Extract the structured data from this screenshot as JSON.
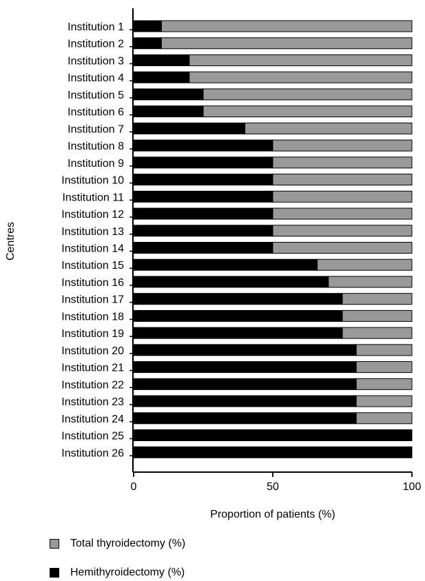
{
  "chart_data": {
    "type": "bar",
    "orientation": "horizontal",
    "stacked": true,
    "categories": [
      "Institution 1",
      "Institution 2",
      "Institution 3",
      "Institution 4",
      "Institution 5",
      "Institution 6",
      "Institution 7",
      "Institution 8",
      "Institution 9",
      "Institution 10",
      "Institution 11",
      "Institution 12",
      "Institution 13",
      "Institution 14",
      "Institution 15",
      "Institution 16",
      "Institution 17",
      "Institution 18",
      "Institution 19",
      "Institution 20",
      "Institution 21",
      "Institution 22",
      "Institution 23",
      "Institution 24",
      "Institution 25",
      "Institution 26"
    ],
    "series": [
      {
        "name": "Hemithyroidectomy (%)",
        "color": "#000000",
        "values": [
          10,
          10,
          20,
          20,
          25,
          25,
          40,
          50,
          50,
          50,
          50,
          50,
          50,
          50,
          66,
          70,
          75,
          75,
          75,
          80,
          80,
          80,
          80,
          80,
          100,
          100
        ]
      },
      {
        "name": "Total thyroidectomy (%)",
        "color": "#999999",
        "values": [
          90,
          90,
          80,
          80,
          75,
          75,
          60,
          50,
          50,
          50,
          50,
          50,
          50,
          50,
          34,
          30,
          25,
          25,
          25,
          20,
          20,
          20,
          20,
          20,
          0,
          0
        ]
      }
    ],
    "xlabel": "Proportion of patients (%)",
    "ylabel": "Centres",
    "xlim": [
      0,
      100
    ],
    "xticks": [
      "0",
      "50",
      "100"
    ],
    "grid": false,
    "legend_position": "bottom-left"
  },
  "legend": {
    "items": [
      {
        "label": "Total thyroidectomy (%)",
        "color": "#999999"
      },
      {
        "label": "Hemithyroidectomy (%)",
        "color": "#000000"
      }
    ]
  }
}
